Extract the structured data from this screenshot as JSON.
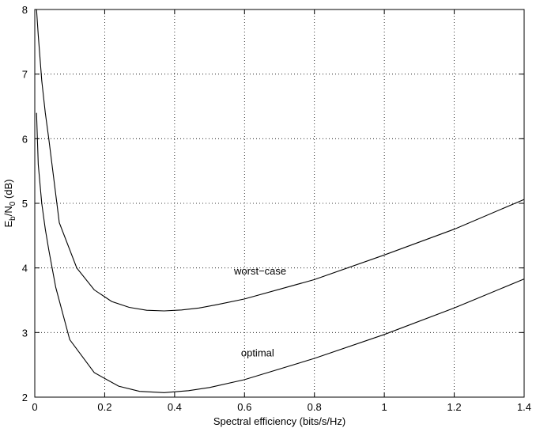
{
  "chart_data": {
    "type": "line",
    "xlabel": "Spectral efficiency (bits/s/Hz)",
    "ylabel_parts": [
      "E",
      "b",
      "/N",
      "0",
      " (dB)"
    ],
    "xlim": [
      0,
      1.4
    ],
    "ylim": [
      2,
      8
    ],
    "xticks": [
      0,
      0.2,
      0.4,
      0.6,
      0.8,
      1,
      1.2,
      1.4
    ],
    "xtick_labels": [
      "0",
      "0.2",
      "0.4",
      "0.6",
      "0.8",
      "1",
      "1.2",
      "1.4"
    ],
    "yticks": [
      2,
      3,
      4,
      5,
      6,
      7,
      8
    ],
    "ytick_labels": [
      "2",
      "3",
      "4",
      "5",
      "6",
      "7",
      "8"
    ],
    "grid": true,
    "series": [
      {
        "color": "#000000",
        "x": [
          0.005,
          0.01,
          0.02,
          0.03,
          0.04,
          0.07,
          0.12,
          0.17,
          0.22,
          0.27,
          0.32,
          0.37,
          0.42,
          0.47,
          0.52,
          0.6,
          0.8,
          1.0,
          1.2,
          1.4
        ],
        "y": [
          8.0,
          7.6,
          6.9,
          6.4,
          6.0,
          4.7,
          4.0,
          3.66,
          3.48,
          3.39,
          3.345,
          3.335,
          3.35,
          3.38,
          3.43,
          3.52,
          3.82,
          4.2,
          4.6,
          5.06
        ]
      },
      {
        "color": "#000000",
        "x": [
          0.005,
          0.01,
          0.02,
          0.03,
          0.04,
          0.06,
          0.1,
          0.17,
          0.24,
          0.3,
          0.37,
          0.44,
          0.5,
          0.6,
          0.8,
          1.0,
          1.2,
          1.4
        ],
        "y": [
          6.4,
          5.6,
          5.0,
          4.6,
          4.28,
          3.7,
          2.89,
          2.38,
          2.17,
          2.09,
          2.07,
          2.1,
          2.15,
          2.27,
          2.6,
          2.97,
          3.38,
          3.83
        ]
      }
    ],
    "annotations": [
      {
        "text": "worst−case",
        "x": 0.57,
        "y": 3.9
      },
      {
        "text": "optimal",
        "x": 0.59,
        "y": 2.63
      }
    ]
  }
}
